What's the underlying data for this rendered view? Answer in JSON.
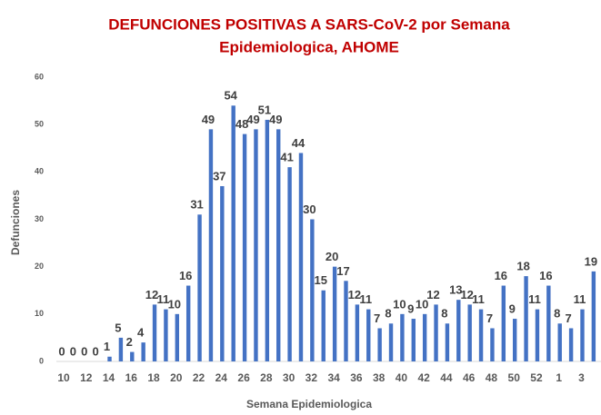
{
  "chart_data": {
    "type": "bar",
    "title": [
      "DEFUNCIONES POSITIVAS A SARS-CoV-2 por Semana",
      "Epidemiologica, AHOME"
    ],
    "x_label": "Semana Epidemiologica",
    "y_label": "Defunciones",
    "categories": [
      "10",
      null,
      "12",
      null,
      "14",
      null,
      "16",
      null,
      "18",
      null,
      "20",
      null,
      "22",
      null,
      "24",
      null,
      "26",
      null,
      "28",
      null,
      "30",
      null,
      "32",
      null,
      "34",
      null,
      "36",
      null,
      "38",
      null,
      "40",
      null,
      "42",
      null,
      "44",
      null,
      "46",
      null,
      "48",
      null,
      "50",
      null,
      "52",
      null,
      "1",
      null,
      "3",
      null
    ],
    "values": [
      0,
      0,
      0,
      0,
      1,
      5,
      2,
      4,
      12,
      11,
      10,
      16,
      31,
      49,
      37,
      54,
      48,
      49,
      51,
      49,
      41,
      44,
      30,
      15,
      20,
      17,
      12,
      11,
      7,
      8,
      10,
      9,
      10,
      12,
      8,
      13,
      12,
      11,
      7,
      16,
      9,
      18,
      11,
      16,
      8,
      7,
      11,
      19
    ],
    "color": "#4472c4",
    "ylim": [
      0,
      60
    ],
    "yticks": [
      0,
      10,
      20,
      30,
      40,
      50,
      60
    ],
    "grid": false
  }
}
